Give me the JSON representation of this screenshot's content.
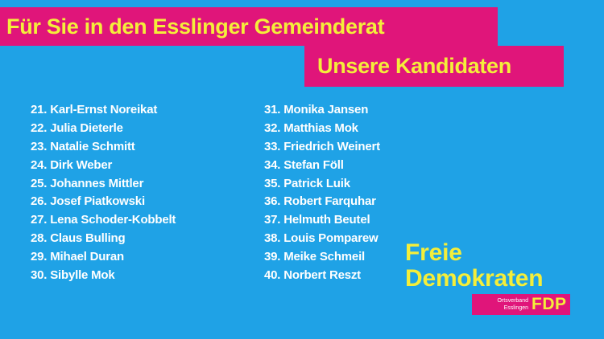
{
  "header": {
    "title": "Für Sie in den Esslinger Gemeinderat",
    "subtitle": "Unsere Kandidaten"
  },
  "candidates": {
    "left": [
      "21. Karl-Ernst Noreikat",
      "22. Julia Dieterle",
      "23. Natalie Schmitt",
      "24. Dirk Weber",
      "25. Johannes Mittler",
      "26. Josef Piatkowski",
      "27. Lena Schoder-Kobbelt",
      "28. Claus Bulling",
      "29. Mihael Duran",
      "30. Sibylle Mok"
    ],
    "right": [
      "31. Monika Jansen",
      "32. Matthias Mok",
      "33. Friedrich Weinert",
      "34. Stefan Föll",
      "35. Patrick Luik",
      "36. Robert Farquhar",
      "37. Helmuth Beutel",
      "38. Louis Pomparew",
      "39. Meike Schmeil",
      "40. Norbert Reszt"
    ]
  },
  "logo": {
    "line1": "Freie",
    "line2": "Demokraten",
    "org_line1": "Ortsverband",
    "org_line2": "Esslingen",
    "party": "FDP"
  },
  "colors": {
    "background": "#1fa2e6",
    "banner": "#e0157a",
    "accent_text": "#f4ee3a",
    "list_text": "#ffffff"
  }
}
